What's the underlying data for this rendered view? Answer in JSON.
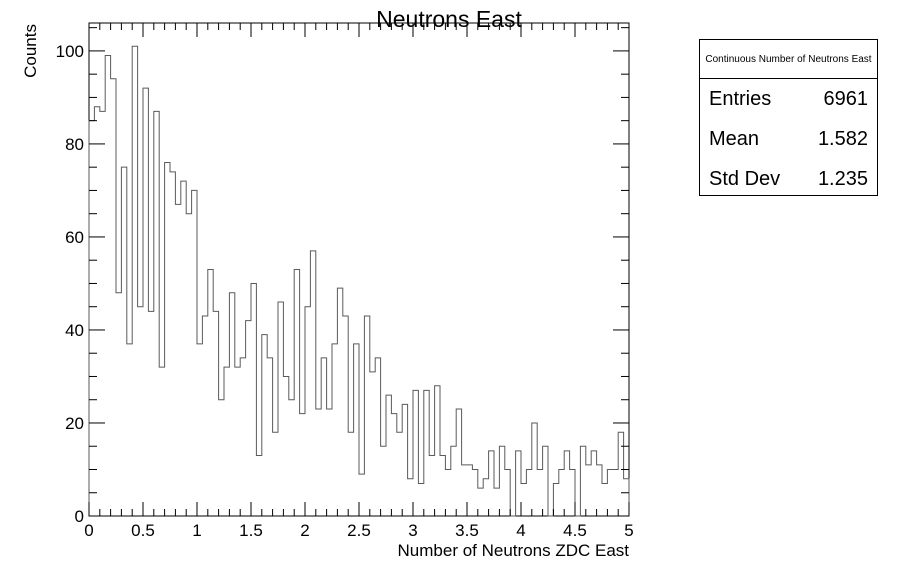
{
  "chart_data": {
    "type": "bar",
    "title": "Neutrons East",
    "xlabel": "Number of Neutrons ZDC East",
    "ylabel": "Counts",
    "xlim": [
      0,
      5
    ],
    "ylim": [
      0,
      106
    ],
    "x_ticks": [
      "0",
      "0.5",
      "1",
      "1.5",
      "2",
      "2.5",
      "3",
      "3.5",
      "4",
      "4.5",
      "5"
    ],
    "y_ticks": [
      "0",
      "20",
      "40",
      "60",
      "80",
      "100"
    ],
    "grid": false,
    "legend": "none",
    "bin_width": 0.05,
    "bin_edges_start": 0,
    "values": [
      85,
      88,
      87,
      99,
      94,
      48,
      75,
      37,
      101,
      45,
      92,
      44,
      87,
      32,
      76,
      74,
      67,
      72,
      65,
      70,
      37,
      43,
      53,
      44,
      25,
      32,
      48,
      32,
      34,
      42,
      50,
      13,
      39,
      34,
      18,
      46,
      30,
      25,
      53,
      22,
      45,
      57,
      23,
      34,
      23,
      37,
      49,
      43,
      18,
      37,
      9,
      43,
      31,
      34,
      15,
      26,
      22,
      18,
      24,
      8,
      27,
      7,
      27,
      13,
      28,
      13,
      10,
      15,
      23,
      11,
      11,
      10,
      6,
      8,
      14,
      6,
      15,
      10,
      0,
      14,
      7,
      10,
      20,
      10,
      15,
      0,
      7,
      10,
      14,
      10,
      0,
      15,
      11,
      14,
      11,
      7,
      10,
      10,
      18,
      8
    ],
    "line_color": "#5a5a5a"
  },
  "stats": {
    "title": "Continuous Number of Neutrons East",
    "rows": [
      {
        "label": "Entries",
        "value": "6961"
      },
      {
        "label": "Mean",
        "value": "1.582"
      },
      {
        "label": "Std Dev",
        "value": "1.235"
      }
    ]
  }
}
